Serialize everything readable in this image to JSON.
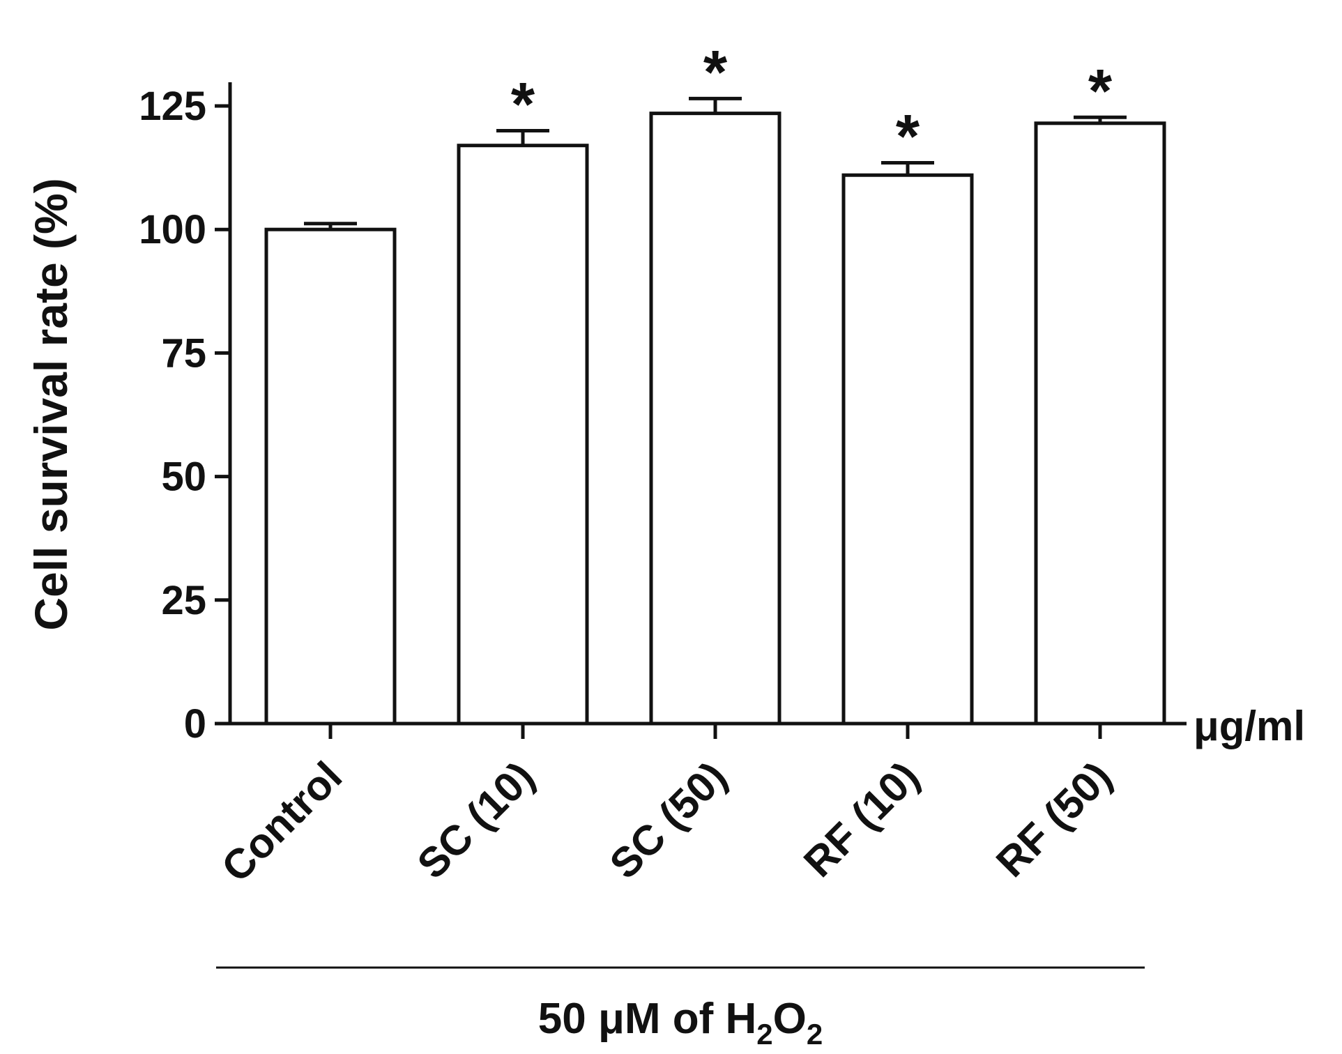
{
  "chart_data": {
    "type": "bar",
    "title": "",
    "ylabel": "Cell survival rate (%)",
    "xlabel": "",
    "unit_label": "μg/ml",
    "treatment_label": {
      "prefix": "50 μM of H",
      "sub1": "2",
      "mid": "O",
      "sub2": "2"
    },
    "categories": [
      "Control",
      "SC (10)",
      "SC (50)",
      "RF (10)",
      "RF (50)"
    ],
    "values": [
      100,
      117,
      123.5,
      111,
      121.5
    ],
    "errors": [
      1.2,
      3,
      3,
      2.5,
      1.2
    ],
    "significance": [
      "",
      "*",
      "*",
      "*",
      "*"
    ],
    "ylim": [
      0,
      125
    ],
    "yticks": [
      0,
      25,
      50,
      75,
      100,
      125
    ],
    "ytick_labels": [
      "0",
      "25",
      "50",
      "75",
      "100",
      "125"
    ],
    "grid": false,
    "legend": "none",
    "colors": {
      "bar_fill": "#ffffff",
      "bar_stroke": "#111111",
      "axis": "#111111",
      "text": "#111111"
    }
  }
}
